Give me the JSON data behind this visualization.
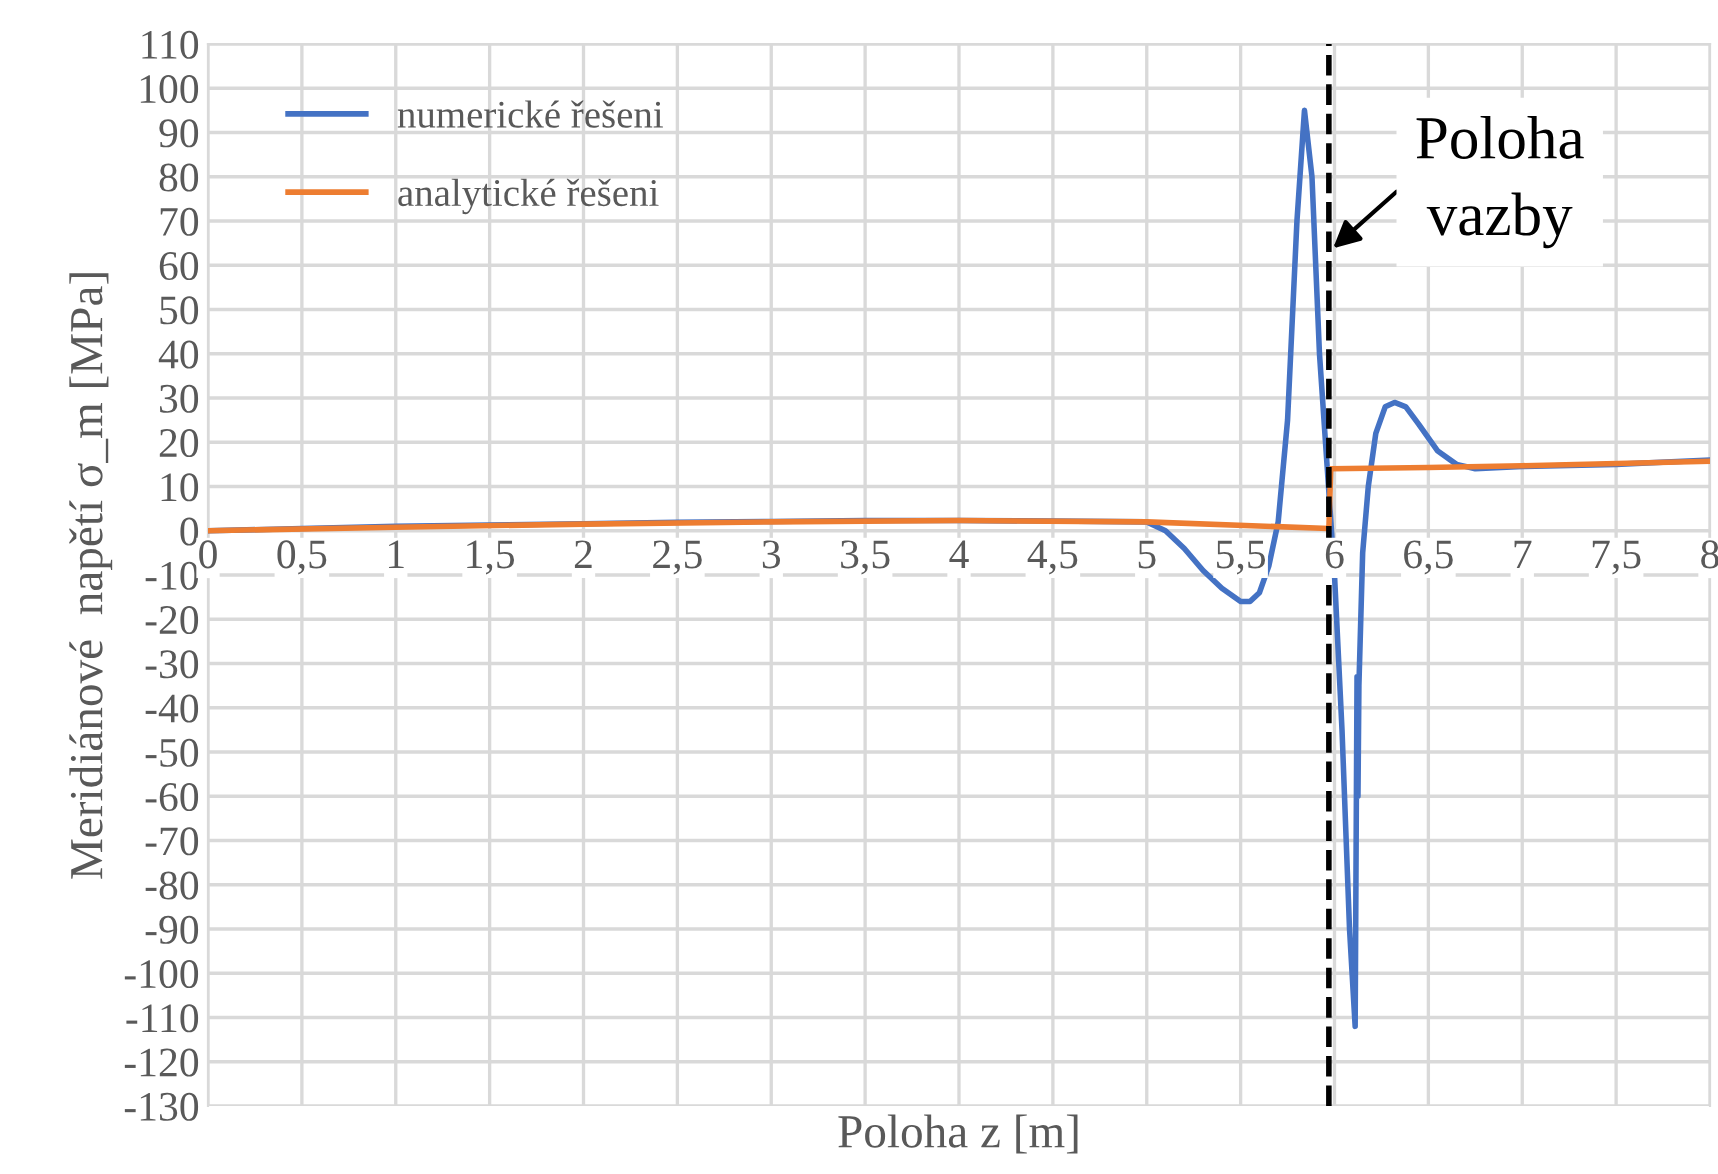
{
  "chart_data": {
    "type": "line",
    "xlabel": "Poloha z [m]",
    "ylabel": "Meridiánové  napětí σ_m [MPa]",
    "xlim": [
      0,
      8
    ],
    "xticks": [
      0,
      {
        "value": 0.5,
        "label": "0,5"
      },
      1,
      {
        "value": 1.5,
        "label": "1,5"
      },
      2,
      {
        "value": 2.5,
        "label": "2,5"
      },
      3,
      {
        "value": 3.5,
        "label": "3,5"
      },
      4,
      {
        "value": 4.5,
        "label": "4,5"
      },
      5,
      {
        "value": 5.5,
        "label": "5,5"
      },
      6,
      {
        "value": 6.5,
        "label": "6,5"
      },
      7,
      {
        "value": 7.5,
        "label": "7,5"
      },
      8
    ],
    "ylim": [
      -130,
      110
    ],
    "yticks": [
      -130,
      -120,
      -110,
      -100,
      -90,
      -80,
      -70,
      -60,
      -50,
      -40,
      -30,
      -20,
      -10,
      0,
      10,
      20,
      30,
      40,
      50,
      60,
      70,
      80,
      90,
      100,
      110
    ],
    "grid": true,
    "legend": "top left",
    "marker": "none",
    "line_style": "solid",
    "series": [
      {
        "name": "numerické řešeni",
        "color": "#4472c4",
        "x": [
          0,
          0.5,
          1,
          1.5,
          2,
          2.5,
          3,
          3.5,
          4,
          4.5,
          5,
          5.1,
          5.2,
          5.3,
          5.4,
          5.5,
          5.55,
          5.6,
          5.65,
          5.7,
          5.75,
          5.8,
          5.84,
          5.88,
          5.92,
          5.96,
          6.0,
          6.04,
          6.08,
          6.11,
          6.12,
          6.125,
          6.13,
          6.15,
          6.18,
          6.22,
          6.27,
          6.32,
          6.38,
          6.45,
          6.55,
          6.65,
          6.75,
          7,
          7.5,
          8
        ],
        "values": [
          0,
          0.5,
          1,
          1.3,
          1.6,
          1.9,
          2.1,
          2.3,
          2.3,
          2.2,
          2,
          0,
          -4,
          -9,
          -13,
          -16,
          -16,
          -14,
          -8,
          2,
          25,
          70,
          95,
          80,
          40,
          15,
          -10,
          -45,
          -90,
          -112,
          -33,
          -60,
          -35,
          -5,
          10,
          22,
          28,
          29,
          28,
          24,
          18,
          15,
          14,
          14.5,
          15,
          16
        ]
      },
      {
        "name": "analytické řešeni",
        "color": "#ed7d31",
        "x": [
          0,
          1,
          2,
          3,
          4,
          5,
          5.97,
          5.98,
          6.5,
          7,
          8
        ],
        "values": [
          0,
          0.8,
          1.5,
          2,
          2.3,
          2,
          0.5,
          14,
          14.3,
          14.7,
          15.7
        ]
      }
    ],
    "ref_lines": [
      {
        "axis": "x",
        "value": 5.97,
        "color": "#000000",
        "line_style": "dashed"
      }
    ],
    "annotations": [
      {
        "text": "Poloha\nvazby",
        "x": 5.97,
        "y": 63
      }
    ]
  }
}
